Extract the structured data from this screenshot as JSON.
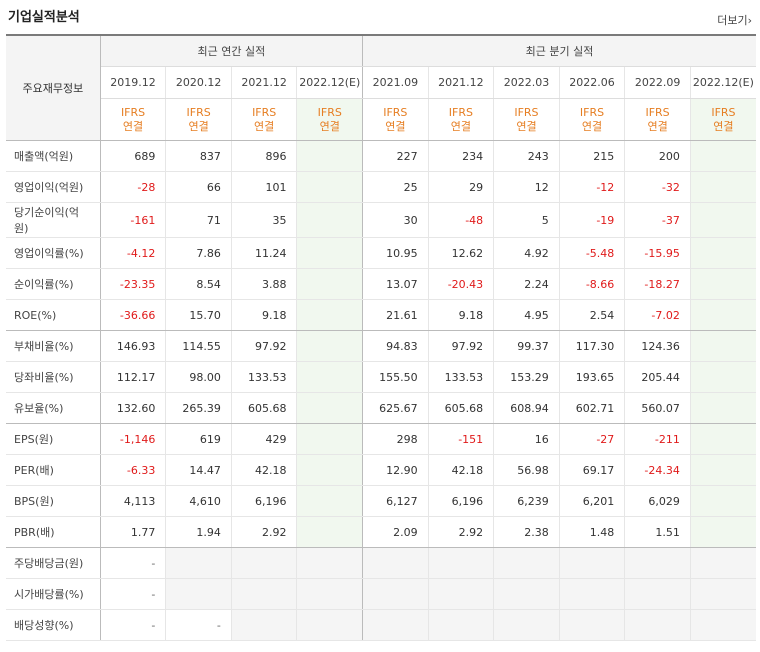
{
  "header": {
    "title": "기업실적분석",
    "more": "더보기"
  },
  "groups": {
    "annual": "최근 연간 실적",
    "quarter": "최근 분기 실적"
  },
  "label_header": "주요재무정보",
  "periods": [
    "2019.12",
    "2020.12",
    "2021.12",
    "2022.12(E)",
    "2021.09",
    "2021.12",
    "2022.03",
    "2022.06",
    "2022.09",
    "2022.12(E)"
  ],
  "ifrs": {
    "line1": "IFRS",
    "line2": "연결"
  },
  "rows": [
    {
      "label": "매출액(억원)",
      "values": [
        "689",
        "837",
        "896",
        "",
        "227",
        "234",
        "243",
        "215",
        "200",
        ""
      ]
    },
    {
      "label": "영업이익(억원)",
      "values": [
        "-28",
        "66",
        "101",
        "",
        "25",
        "29",
        "12",
        "-12",
        "-32",
        ""
      ]
    },
    {
      "label": "당기순이익(억원)",
      "values": [
        "-161",
        "71",
        "35",
        "",
        "30",
        "-48",
        "5",
        "-19",
        "-37",
        ""
      ]
    },
    {
      "label": "영업이익률(%)",
      "values": [
        "-4.12",
        "7.86",
        "11.24",
        "",
        "10.95",
        "12.62",
        "4.92",
        "-5.48",
        "-15.95",
        ""
      ]
    },
    {
      "label": "순이익률(%)",
      "values": [
        "-23.35",
        "8.54",
        "3.88",
        "",
        "13.07",
        "-20.43",
        "2.24",
        "-8.66",
        "-18.27",
        ""
      ]
    },
    {
      "label": "ROE(%)",
      "values": [
        "-36.66",
        "15.70",
        "9.18",
        "",
        "21.61",
        "9.18",
        "4.95",
        "2.54",
        "-7.02",
        ""
      ]
    },
    {
      "label": "부채비율(%)",
      "values": [
        "146.93",
        "114.55",
        "97.92",
        "",
        "94.83",
        "97.92",
        "99.37",
        "117.30",
        "124.36",
        ""
      ]
    },
    {
      "label": "당좌비율(%)",
      "values": [
        "112.17",
        "98.00",
        "133.53",
        "",
        "155.50",
        "133.53",
        "153.29",
        "193.65",
        "205.44",
        ""
      ]
    },
    {
      "label": "유보율(%)",
      "values": [
        "132.60",
        "265.39",
        "605.68",
        "",
        "625.67",
        "605.68",
        "608.94",
        "602.71",
        "560.07",
        ""
      ]
    },
    {
      "label": "EPS(원)",
      "values": [
        "-1,146",
        "619",
        "429",
        "",
        "298",
        "-151",
        "16",
        "-27",
        "-211",
        ""
      ]
    },
    {
      "label": "PER(배)",
      "values": [
        "-6.33",
        "14.47",
        "42.18",
        "",
        "12.90",
        "42.18",
        "56.98",
        "69.17",
        "-24.34",
        ""
      ]
    },
    {
      "label": "BPS(원)",
      "values": [
        "4,113",
        "4,610",
        "6,196",
        "",
        "6,127",
        "6,196",
        "6,239",
        "6,201",
        "6,029",
        ""
      ]
    },
    {
      "label": "PBR(배)",
      "values": [
        "1.77",
        "1.94",
        "2.92",
        "",
        "2.09",
        "2.92",
        "2.38",
        "1.48",
        "1.51",
        ""
      ]
    },
    {
      "label": "주당배당금(원)",
      "values": [
        "-",
        "",
        "",
        "",
        "",
        "",
        "",
        "",
        "",
        ""
      ]
    },
    {
      "label": "시가배당률(%)",
      "values": [
        "-",
        "",
        "",
        "",
        "",
        "",
        "",
        "",
        "",
        ""
      ]
    },
    {
      "label": "배당성향(%)",
      "values": [
        "-",
        "-",
        "",
        "",
        "",
        "",
        "",
        "",
        "",
        ""
      ]
    }
  ]
}
